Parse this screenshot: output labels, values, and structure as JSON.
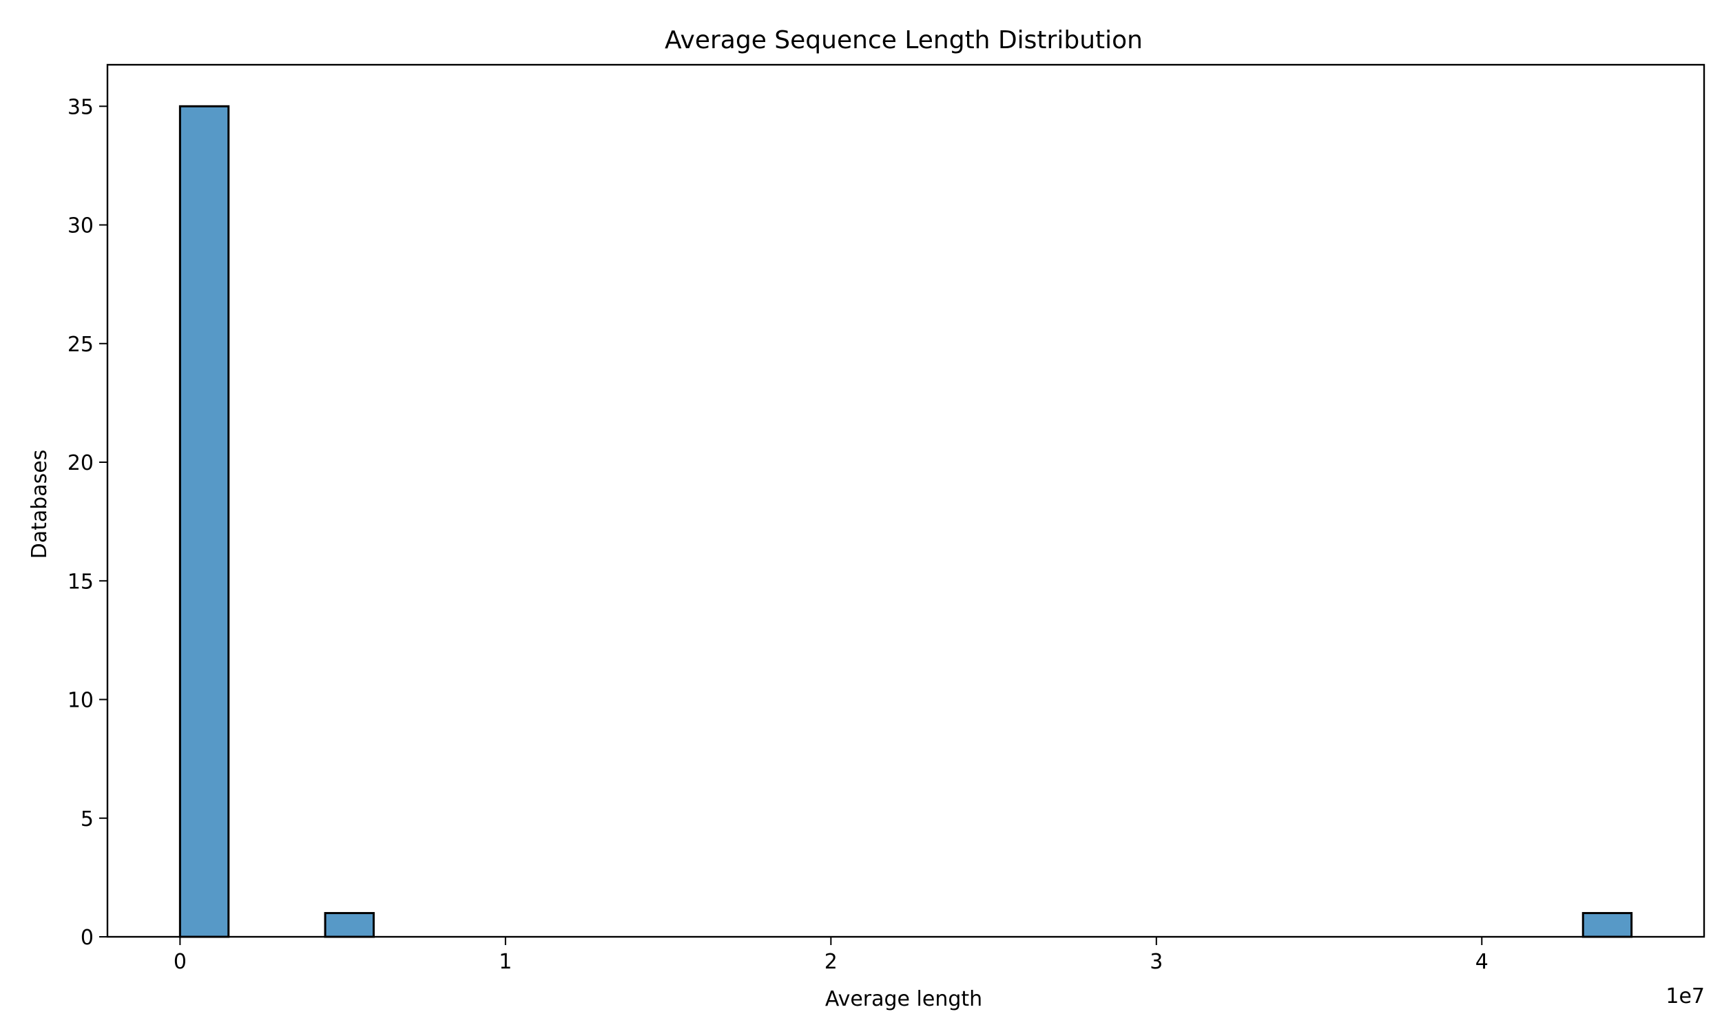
{
  "chart_data": {
    "type": "bar",
    "title": "Average Sequence Length Distribution",
    "xlabel": "Average length",
    "ylabel": "Databases",
    "x_offset_text": "1e7",
    "xlim": [
      -2230000,
      46830000
    ],
    "ylim": [
      0,
      36.75
    ],
    "xticks": [
      {
        "value": 0,
        "label": "0"
      },
      {
        "value": 10000000,
        "label": "1"
      },
      {
        "value": 20000000,
        "label": "2"
      },
      {
        "value": 30000000,
        "label": "3"
      },
      {
        "value": 40000000,
        "label": "4"
      }
    ],
    "yticks": [
      {
        "value": 0,
        "label": "0"
      },
      {
        "value": 5,
        "label": "5"
      },
      {
        "value": 10,
        "label": "10"
      },
      {
        "value": 15,
        "label": "15"
      },
      {
        "value": 20,
        "label": "20"
      },
      {
        "value": 25,
        "label": "25"
      },
      {
        "value": 30,
        "label": "30"
      },
      {
        "value": 35,
        "label": "35"
      }
    ],
    "bins": [
      {
        "x0": 0,
        "x1": 1490000,
        "count": 35
      },
      {
        "x0": 4460000,
        "x1": 5950000,
        "count": 1
      },
      {
        "x0": 43110000,
        "x1": 44600000,
        "count": 1
      }
    ],
    "bar_color": "#5799c7",
    "edge_color": "#000000",
    "grid": false,
    "legend": "none"
  }
}
